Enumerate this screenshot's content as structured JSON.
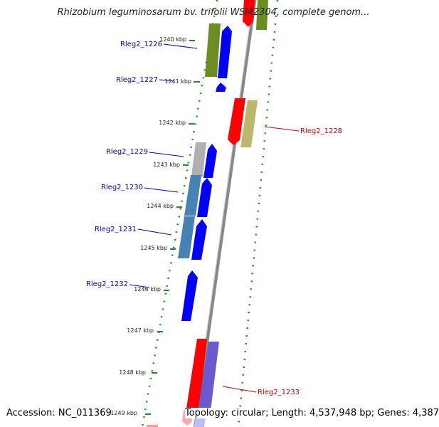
{
  "title": "Rhizobium leguminosarum bv. trifolii WSM2304, complete genom...",
  "footer": {
    "accession": "Accession: NC_011369",
    "topology": "Topology: circular; Length: 4,537,948 bp; Genes: 4,387"
  },
  "ticks": [
    "1240 kbp",
    "1241 kbp",
    "1242 kbp",
    "1243 kbp",
    "1244 kbp",
    "1245 kbp",
    "1246 kbp",
    "1247 kbp",
    "1248 kbp",
    "1249 kbp"
  ],
  "genes": [
    {
      "name": "Rleg2_1226",
      "color": "#0000cc"
    },
    {
      "name": "Rleg2_1227",
      "color": "#0000cc"
    },
    {
      "name": "Rleg2_1228",
      "color": "#cc0000"
    },
    {
      "name": "Rleg2_1229",
      "color": "#0000cc"
    },
    {
      "name": "Rleg2_1230",
      "color": "#0000cc"
    },
    {
      "name": "Rleg2_1231",
      "color": "#0000cc"
    },
    {
      "name": "Rleg2_1232",
      "color": "#0000cc"
    },
    {
      "name": "Rleg2_1233",
      "color": "#cc0000"
    }
  ],
  "colors": {
    "forward_cds": "#0000ff",
    "reverse_cds": "#ff0000",
    "backbone": "#888888",
    "dots": "#228b22"
  }
}
